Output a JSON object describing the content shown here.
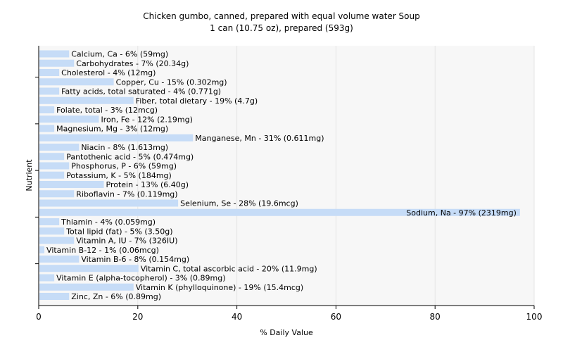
{
  "chart_data": {
    "type": "bar",
    "orientation": "horizontal",
    "title": "Chicken gumbo, canned, prepared with equal volume water Soup",
    "subtitle": "1 can (10.75 oz), prepared (593g)",
    "xlabel": "% Daily Value",
    "ylabel": "Nutrient",
    "xlim": [
      0,
      100
    ],
    "xticks": [
      0,
      20,
      40,
      60,
      80,
      100
    ],
    "grid": true,
    "bar_color": "#c6dcf7",
    "categories": [
      "Calcium, Ca",
      "Carbohydrates",
      "Cholesterol",
      "Copper, Cu",
      "Fatty acids, total saturated",
      "Fiber, total dietary",
      "Folate, total",
      "Iron, Fe",
      "Magnesium, Mg",
      "Manganese, Mn",
      "Niacin",
      "Pantothenic acid",
      "Phosphorus, P",
      "Potassium, K",
      "Protein",
      "Riboflavin",
      "Selenium, Se",
      "Sodium, Na",
      "Thiamin",
      "Total lipid (fat)",
      "Vitamin A, IU",
      "Vitamin B-12",
      "Vitamin B-6",
      "Vitamin C, total ascorbic acid",
      "Vitamin E (alpha-tocopherol)",
      "Vitamin K (phylloquinone)",
      "Zinc, Zn"
    ],
    "values": [
      6,
      7,
      4,
      15,
      4,
      19,
      3,
      12,
      3,
      31,
      8,
      5,
      6,
      5,
      13,
      7,
      28,
      97,
      4,
      5,
      7,
      1,
      8,
      20,
      3,
      19,
      6
    ],
    "labels": [
      "Calcium, Ca - 6% (59mg)",
      "Carbohydrates - 7% (20.34g)",
      "Cholesterol - 4% (12mg)",
      "Copper, Cu - 15% (0.302mg)",
      "Fatty acids, total saturated - 4% (0.771g)",
      "Fiber, total dietary - 19% (4.7g)",
      "Folate, total - 3% (12mcg)",
      "Iron, Fe - 12% (2.19mg)",
      "Magnesium, Mg - 3% (12mg)",
      "Manganese, Mn - 31% (0.611mg)",
      "Niacin - 8% (1.613mg)",
      "Pantothenic acid - 5% (0.474mg)",
      "Phosphorus, P - 6% (59mg)",
      "Potassium, K - 5% (184mg)",
      "Protein - 13% (6.40g)",
      "Riboflavin - 7% (0.119mg)",
      "Selenium, Se - 28% (19.6mcg)",
      "Sodium, Na - 97% (2319mg)",
      "Thiamin - 4% (0.059mg)",
      "Total lipid (fat) - 5% (3.50g)",
      "Vitamin A, IU - 7% (326IU)",
      "Vitamin B-12 - 1% (0.06mcg)",
      "Vitamin B-6 - 8% (0.154mg)",
      "Vitamin C, total ascorbic acid - 20% (11.9mg)",
      "Vitamin E (alpha-tocopherol) - 3% (0.89mg)",
      "Vitamin K (phylloquinone) - 19% (15.4mcg)",
      "Zinc, Zn - 6% (0.89mg)"
    ]
  }
}
